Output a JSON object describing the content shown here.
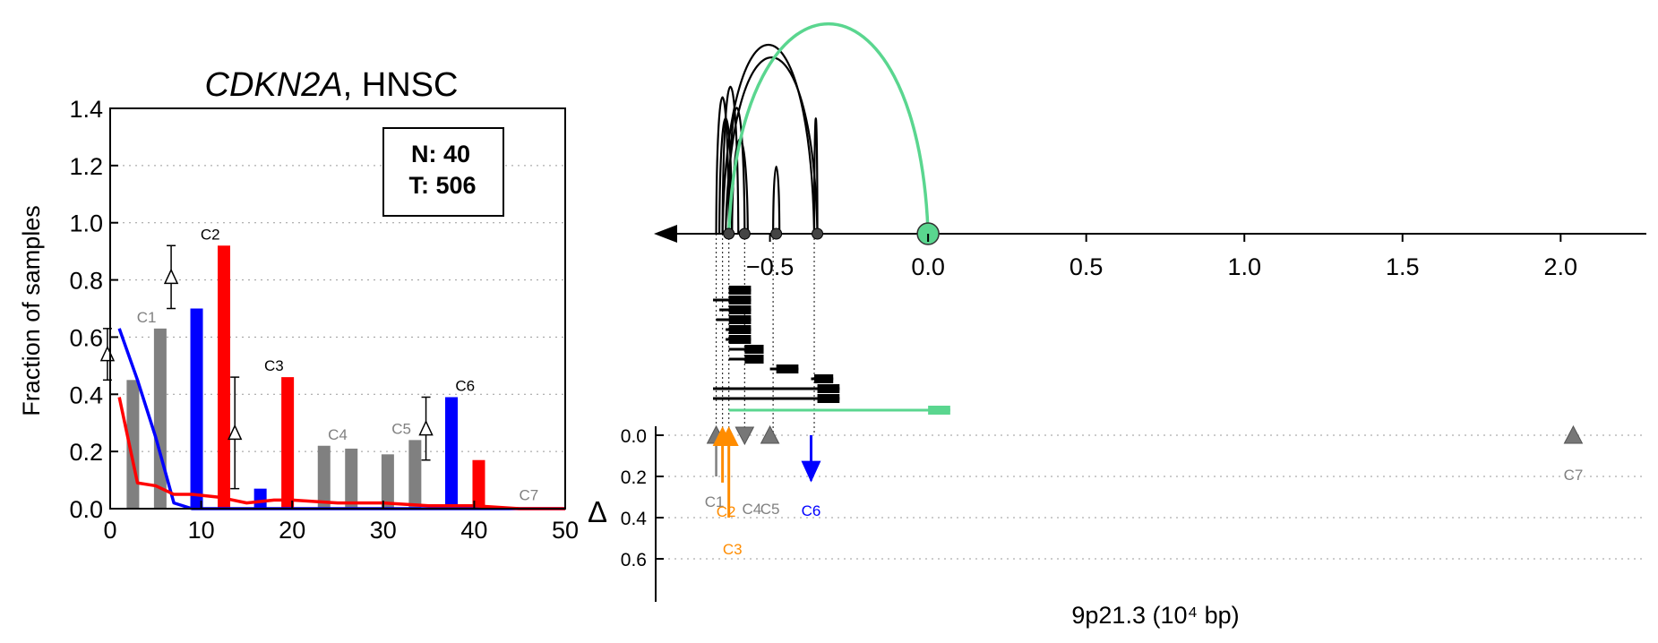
{
  "colors": {
    "normal": "#0000ff",
    "tumor": "#ff0000",
    "gray": "#808080",
    "orange": "#ff8c00",
    "green": "#5ad68f",
    "black": "#000000"
  },
  "chart_data": [
    {
      "type": "bar",
      "title_gene": "CDKN2A",
      "title_rest": ", HNSC",
      "ylabel": "Fraction of samples",
      "xlim": [
        0,
        50
      ],
      "ylim": [
        0,
        1.4
      ],
      "xticks": [
        "0",
        "10",
        "20",
        "30",
        "40",
        "50"
      ],
      "yticks": [
        "0.0",
        "0.2",
        "0.4",
        "0.6",
        "0.8",
        "1.0",
        "1.2",
        "1.4"
      ],
      "legend_n": "N: 40",
      "legend_t": "T: 506",
      "legend_position": "top-right",
      "clusters": [
        {
          "label": "C1",
          "x": 4,
          "normal": 0.45,
          "tumor": 0.63,
          "highlight": false,
          "delta_top": 0.63,
          "delta_bottom": 0.45
        },
        {
          "label": "C2",
          "x": 11,
          "normal": 0.7,
          "tumor": 0.92,
          "highlight": true,
          "delta_top": 0.92,
          "delta_bottom": 0.7
        },
        {
          "label": "C3",
          "x": 18,
          "normal": 0.07,
          "tumor": 0.46,
          "highlight": true,
          "delta_top": 0.46,
          "delta_bottom": 0.07
        },
        {
          "label": "C4",
          "x": 25,
          "normal": 0.22,
          "tumor": 0.21,
          "highlight": false
        },
        {
          "label": "C5",
          "x": 32,
          "normal": 0.19,
          "tumor": 0.24,
          "highlight": false
        },
        {
          "label": "C6",
          "x": 39,
          "normal": 0.39,
          "tumor": 0.17,
          "highlight": true,
          "delta_top": 0.39,
          "delta_bottom": 0.17
        },
        {
          "label": "C7",
          "x": 46,
          "normal": 0.0,
          "tumor": 0.0,
          "highlight": false
        }
      ],
      "normal_curve": {
        "x": [
          1,
          3,
          5,
          7,
          9,
          15,
          20,
          30,
          40,
          50
        ],
        "y": [
          0.63,
          0.45,
          0.25,
          0.02,
          0.0,
          0.0,
          0.0,
          0.0,
          0.0,
          0.0
        ]
      },
      "tumor_curve": {
        "x": [
          1,
          3,
          5,
          7,
          9,
          12,
          15,
          18,
          20,
          25,
          30,
          35,
          40,
          45,
          50
        ],
        "y": [
          0.39,
          0.09,
          0.08,
          0.05,
          0.05,
          0.04,
          0.02,
          0.03,
          0.03,
          0.02,
          0.02,
          0.01,
          0.01,
          0.0,
          0.0
        ]
      }
    },
    {
      "type": "scatter",
      "xlabel": "9p21.3 (10⁴ bp)",
      "xlim": [
        -0.85,
        2.22
      ],
      "xticks": [
        "−0.5",
        "0.0",
        "0.5",
        "1.0",
        "1.5",
        "2.0"
      ],
      "delta_label": "Δ",
      "delta_ylim": [
        0.0,
        0.7
      ],
      "delta_yticks": [
        "0.0",
        "0.2",
        "0.4",
        "0.6"
      ],
      "nodes": [
        {
          "x": -0.63,
          "color": "black"
        },
        {
          "x": -0.58,
          "color": "black"
        },
        {
          "x": -0.48,
          "color": "black"
        },
        {
          "x": -0.35,
          "color": "black"
        },
        {
          "x": 0.0,
          "color": "green"
        }
      ],
      "arcs": [
        {
          "x1": -0.67,
          "x2": -0.63,
          "h": 0.65,
          "color": "black"
        },
        {
          "x1": -0.66,
          "x2": -0.62,
          "h": 0.55,
          "color": "black"
        },
        {
          "x1": -0.65,
          "x2": -0.6,
          "h": 0.7,
          "color": "black"
        },
        {
          "x1": -0.65,
          "x2": -0.36,
          "h": 0.9,
          "color": "black"
        },
        {
          "x1": -0.64,
          "x2": -0.35,
          "h": 0.84,
          "color": "black"
        },
        {
          "x1": -0.63,
          "x2": -0.58,
          "h": 0.6,
          "color": "black"
        },
        {
          "x1": -0.62,
          "x2": -0.57,
          "h": 0.45,
          "color": "black"
        },
        {
          "x1": -0.49,
          "x2": -0.47,
          "h": 0.32,
          "color": "black"
        },
        {
          "x1": -0.36,
          "x2": -0.35,
          "h": 0.55,
          "color": "black"
        },
        {
          "x1": -0.63,
          "x2": 0.0,
          "h": 1.0,
          "color": "green"
        }
      ],
      "intervals": [
        {
          "x1": -0.63,
          "x2": -0.56,
          "thick_from": -0.63,
          "color": "black"
        },
        {
          "x1": -0.68,
          "x2": -0.56,
          "thick_from": -0.63,
          "color": "black"
        },
        {
          "x1": -0.66,
          "x2": -0.56,
          "thick_from": -0.63,
          "color": "black"
        },
        {
          "x1": -0.67,
          "x2": -0.56,
          "thick_from": -0.63,
          "color": "black"
        },
        {
          "x1": -0.64,
          "x2": -0.56,
          "thick_from": -0.63,
          "color": "black"
        },
        {
          "x1": -0.64,
          "x2": -0.56,
          "thick_from": -0.63,
          "color": "black"
        },
        {
          "x1": -0.63,
          "x2": -0.52,
          "thick_from": -0.58,
          "color": "black"
        },
        {
          "x1": -0.63,
          "x2": -0.52,
          "thick_from": -0.58,
          "color": "black"
        },
        {
          "x1": -0.5,
          "x2": -0.41,
          "thick_from": -0.48,
          "color": "black"
        },
        {
          "x1": -0.37,
          "x2": -0.3,
          "thick_from": -0.36,
          "color": "black"
        },
        {
          "x1": -0.68,
          "x2": -0.28,
          "thick_from": -0.35,
          "color": "black"
        },
        {
          "x1": -0.68,
          "x2": -0.28,
          "thick_from": -0.35,
          "color": "black"
        },
        {
          "x1": -0.63,
          "x2": 0.07,
          "thick_from": 0.0,
          "color": "green"
        }
      ],
      "markers": [
        {
          "label": "C1",
          "x": -0.67,
          "delta": 0.2,
          "dir": "down",
          "color": "gray"
        },
        {
          "label": "C2",
          "x": -0.65,
          "delta": 0.23,
          "dir": "down",
          "color": "orange"
        },
        {
          "label": "C3",
          "x": -0.63,
          "delta": 0.4,
          "dir": "down",
          "color": "orange"
        },
        {
          "label": "C4",
          "x": -0.58,
          "delta": 0.0,
          "dir": "up",
          "color": "gray"
        },
        {
          "label": "C5",
          "x": -0.5,
          "delta": 0.0,
          "dir": "down",
          "color": "gray"
        },
        {
          "label": "C6",
          "x": -0.37,
          "delta": 0.22,
          "dir": "up",
          "color": "blue"
        },
        {
          "label": "C7",
          "x": 2.04,
          "delta": 0.0,
          "dir": "down",
          "color": "gray"
        }
      ]
    }
  ]
}
